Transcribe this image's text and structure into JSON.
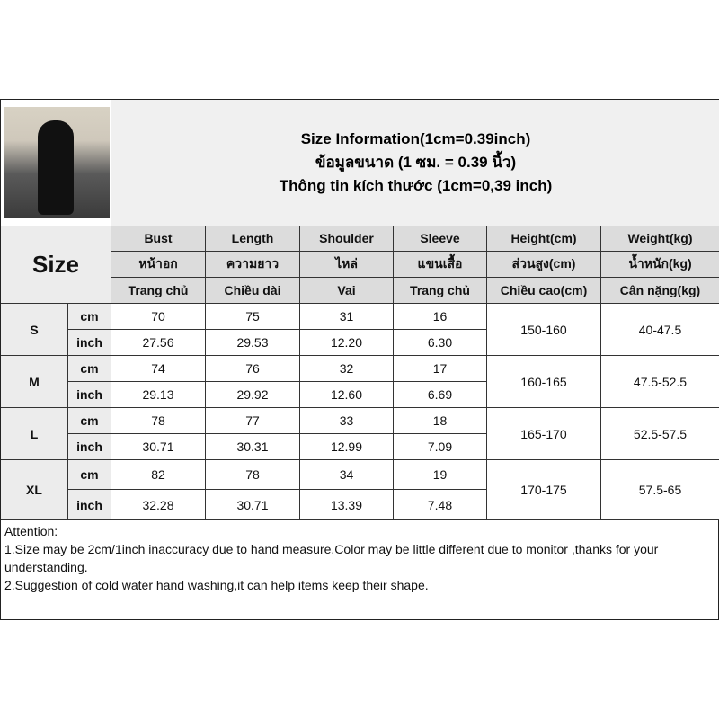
{
  "title": [
    "Size Information(1cm=0.39inch)",
    "ข้อมูลขนาด (1 ซม. = 0.39 นิ้ว)",
    "Thông tin kích thước (1cm=0,39 inch)"
  ],
  "size_label": "Size",
  "headers": [
    [
      "Bust",
      "หน้าอก",
      "Trang chủ"
    ],
    [
      "Length",
      "ความยาว",
      "Chiều dài"
    ],
    [
      "Shoulder",
      "ไหล่",
      "Vai"
    ],
    [
      "Sleeve",
      "แขนเสื้อ",
      "Trang chủ"
    ],
    [
      "Height(cm)",
      "ส่วนสูง(cm)",
      "Chiều cao(cm)"
    ],
    [
      "Weight(kg)",
      "น้ำหนัก(kg)",
      "Cân nặng(kg)"
    ]
  ],
  "rows": [
    {
      "size": "S",
      "cm": [
        "70",
        "75",
        "31",
        "16"
      ],
      "inch": [
        "27.56",
        "29.53",
        "12.20",
        "6.30"
      ],
      "height": "150-160",
      "weight": "40-47.5"
    },
    {
      "size": "M",
      "cm": [
        "74",
        "76",
        "32",
        "17"
      ],
      "inch": [
        "29.13",
        "29.92",
        "12.60",
        "6.69"
      ],
      "height": "160-165",
      "weight": "47.5-52.5"
    },
    {
      "size": "L",
      "cm": [
        "78",
        "77",
        "33",
        "18"
      ],
      "inch": [
        "30.71",
        "30.31",
        "12.99",
        "7.09"
      ],
      "height": "165-170",
      "weight": "52.5-57.5"
    },
    {
      "size": "XL",
      "cm": [
        "82",
        "78",
        "34",
        "19"
      ],
      "inch": [
        "32.28",
        "30.71",
        "13.39",
        "7.48"
      ],
      "height": "170-175",
      "weight": "57.5-65"
    }
  ],
  "units": {
    "cm": "cm",
    "inch": "inch"
  },
  "attention": [
    "Attention:",
    "1.Size may be 2cm/1inch inaccuracy due to hand measure,Color may be little different due to monitor ,thanks for your understanding.",
    "2.Suggestion of cold water hand washing,it can help items keep their shape."
  ]
}
